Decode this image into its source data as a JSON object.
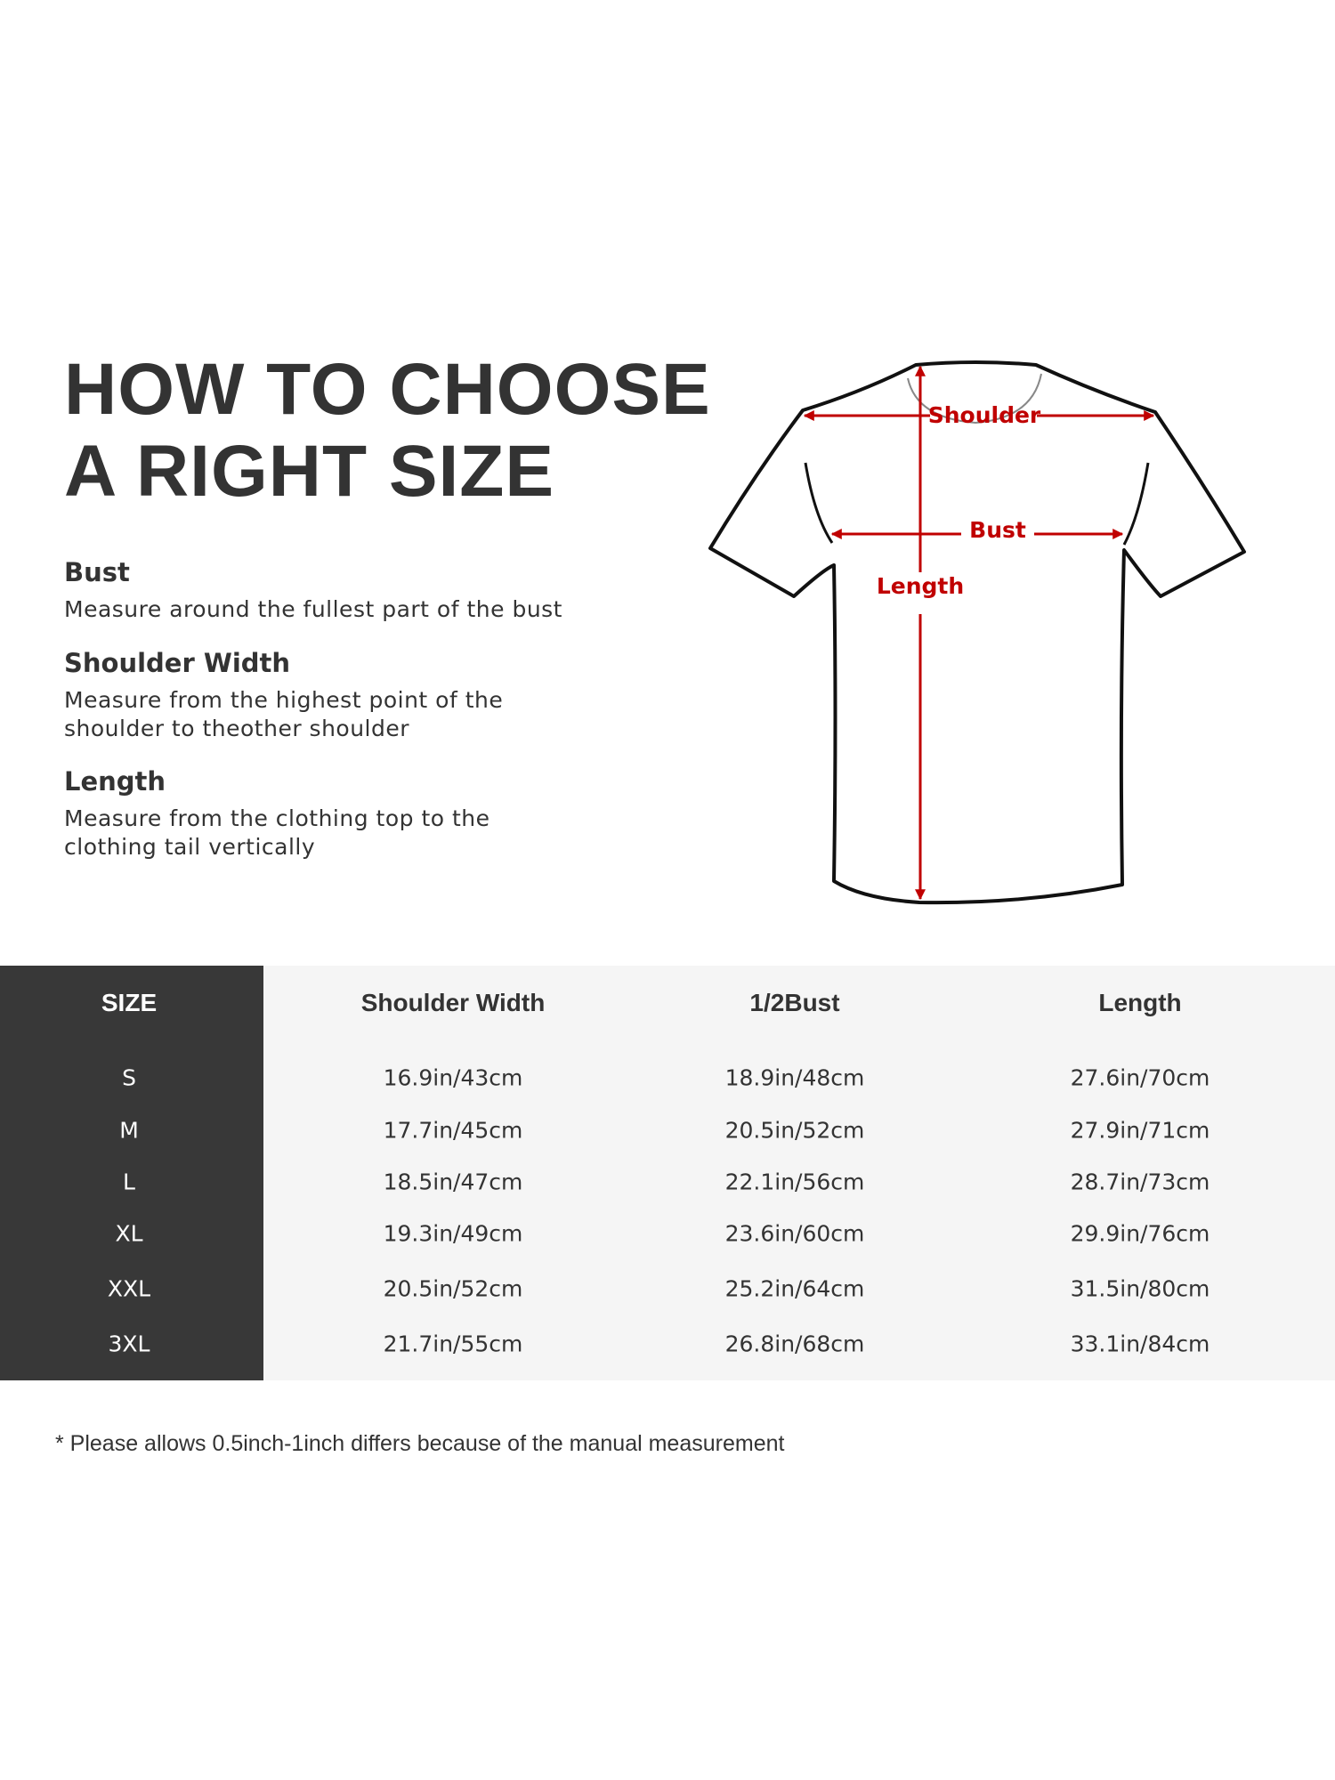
{
  "title": {
    "line1": "HOW TO CHOOSE",
    "line2": "A RIGHT SIZE"
  },
  "guide": [
    {
      "heading": "Bust",
      "lines": [
        "Measure around the fullest part of the bust"
      ]
    },
    {
      "heading": "Shoulder Width",
      "lines": [
        "Measure from the highest point of the",
        "shoulder to theother shoulder"
      ]
    },
    {
      "heading": "Length",
      "lines": [
        "Measure from the clothing top to the",
        "clothing tail vertically"
      ]
    }
  ],
  "diagram": {
    "shoulder_label": "Shoulder",
    "bust_label": "Bust",
    "length_label": "Length",
    "arrow_color": "#c00000"
  },
  "table": {
    "headers": [
      "SIZE",
      "Shoulder Width",
      "1/2Bust",
      "Length"
    ],
    "rows": [
      [
        "S",
        "16.9in/43cm",
        "18.9in/48cm",
        "27.6in/70cm"
      ],
      [
        "M",
        "17.7in/45cm",
        "20.5in/52cm",
        "27.9in/71cm"
      ],
      [
        "L",
        "18.5in/47cm",
        "22.1in/56cm",
        "28.7in/73cm"
      ],
      [
        "XL",
        "19.3in/49cm",
        "23.6in/60cm",
        "29.9in/76cm"
      ],
      [
        "XXL",
        "20.5in/52cm",
        "25.2in/64cm",
        "31.5in/80cm"
      ],
      [
        "3XL",
        "21.7in/55cm",
        "26.8in/68cm",
        "33.1in/84cm"
      ]
    ]
  },
  "footnote": "* Please allows 0.5inch-1inch differs because of the  manual measurement"
}
